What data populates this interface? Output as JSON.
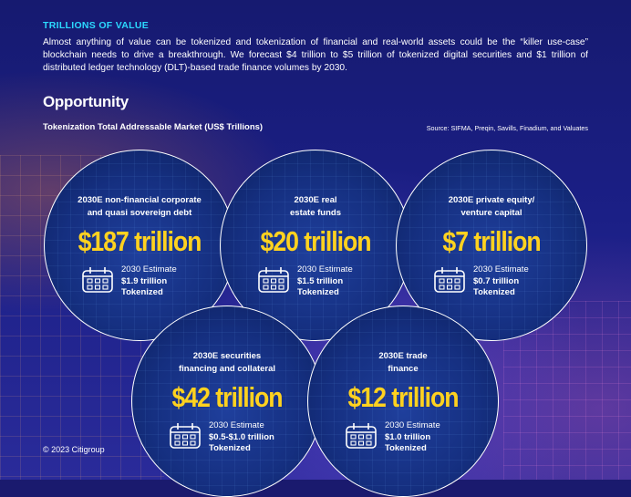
{
  "header": {
    "kicker": "TRILLIONS OF VALUE",
    "intro": "Almost anything of value can be tokenized and tokenization of financial and real-world assets could be the “killer use-case” blockchain needs to drive a breakthrough. We forecast $4 trillion to $5 trillion of tokenized digital securities and $1 trillion of distributed ledger technology (DLT)-based trade finance volumes by 2030."
  },
  "section": {
    "title": "Opportunity",
    "subtitle": "Tokenization Total Addressable Market (US$ Trillions)",
    "source": "Source: SIFMA, Preqin, Savills, Finadium, and Valuates"
  },
  "circles": [
    {
      "title_line1": "2030E non-financial corporate",
      "title_line2": "and quasi sovereign debt",
      "value": "$187 trillion",
      "est_label": "2030 Estimate",
      "est_value": "$1.9 trillion",
      "est_suffix": "Tokenized"
    },
    {
      "title_line1": "2030E real",
      "title_line2": "estate funds",
      "value": "$20 trillion",
      "est_label": "2030 Estimate",
      "est_value": "$1.5 trillion",
      "est_suffix": "Tokenized"
    },
    {
      "title_line1": "2030E private equity/",
      "title_line2": "venture capital",
      "value": "$7 trillion",
      "est_label": "2030 Estimate",
      "est_value": "$0.7 trillion",
      "est_suffix": "Tokenized"
    },
    {
      "title_line1": "2030E securities",
      "title_line2": "financing and collateral",
      "value": "$42 trillion",
      "est_label": "2030 Estimate",
      "est_value": "$0.5-$1.0 trillion",
      "est_suffix": "Tokenized"
    },
    {
      "title_line1": "2030E trade",
      "title_line2": "finance",
      "value": "$12 trillion",
      "est_label": "2030 Estimate",
      "est_value": "$1.0 trillion",
      "est_suffix": "Tokenized"
    }
  ],
  "footer": {
    "copyright": "© 2023 Citigroup"
  },
  "colors": {
    "accent_cyan": "#2bd9ff",
    "value_yellow": "#ffd21f",
    "background_navy": "#1a1a6e"
  },
  "icons": {
    "estimate": "calendar-icon"
  }
}
